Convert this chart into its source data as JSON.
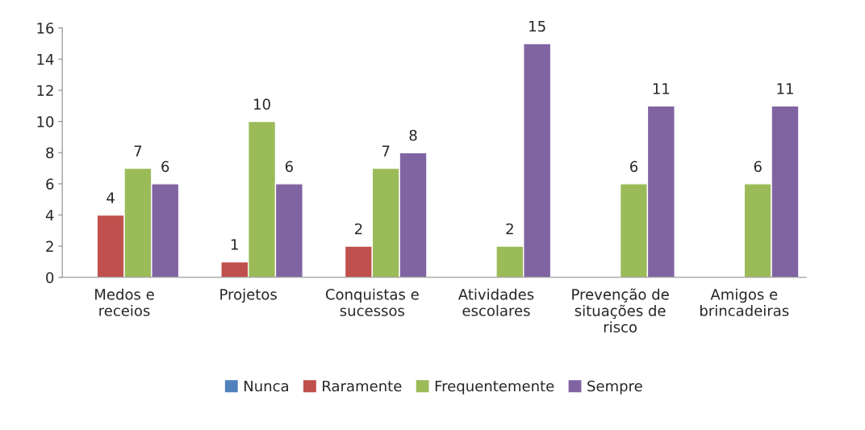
{
  "chart_data": {
    "type": "bar",
    "categories": [
      "Medos e receios",
      "Projetos",
      "Conquistas e sucessos",
      "Atividades escolares",
      "Prevenção de situações de risco",
      "Amigos e brincadeiras"
    ],
    "series": [
      {
        "name": "Nunca",
        "color": "#4f81bd",
        "values": [
          null,
          null,
          null,
          null,
          null,
          null
        ]
      },
      {
        "name": "Raramente",
        "color": "#c0504d",
        "values": [
          4,
          1,
          2,
          null,
          null,
          null
        ]
      },
      {
        "name": "Frequentemente",
        "color": "#9bbb59",
        "values": [
          7,
          10,
          7,
          2,
          6,
          6
        ]
      },
      {
        "name": "Sempre",
        "color": "#8064a2",
        "values": [
          6,
          6,
          8,
          15,
          11,
          11
        ]
      }
    ],
    "ylim": [
      0,
      16
    ],
    "yticks": [
      0,
      2,
      4,
      6,
      8,
      10,
      12,
      14,
      16
    ],
    "grid": false,
    "legend": "bottom",
    "data_labels": true
  }
}
